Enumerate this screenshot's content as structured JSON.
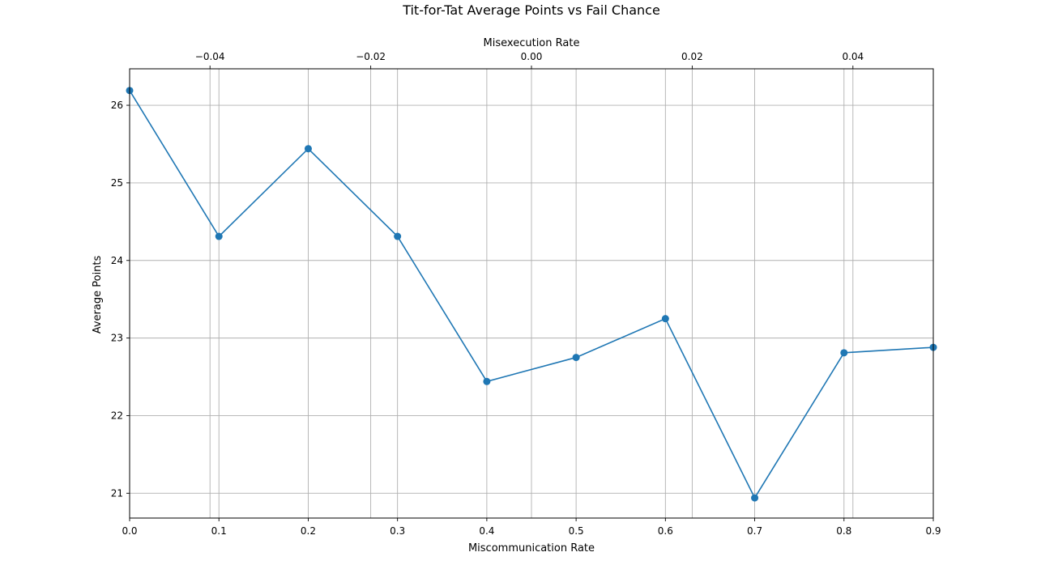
{
  "chart_data": {
    "type": "line",
    "title": "Tit-for-Tat Average Points vs Fail Chance",
    "xlabel": "Miscommunication Rate",
    "ylabel": "Average Points",
    "secondary_xlabel": "Misexecution Rate",
    "x": [
      0.0,
      0.1,
      0.2,
      0.3,
      0.4,
      0.5,
      0.6,
      0.7,
      0.8,
      0.9
    ],
    "series": [
      {
        "values": [
          26.19,
          24.31,
          25.44,
          24.31,
          22.44,
          22.75,
          23.25,
          20.94,
          22.81,
          22.88
        ]
      }
    ],
    "xlim": [
      0.0,
      0.9
    ],
    "ylim": [
      20.68,
      26.47
    ],
    "secondary_xlim": [
      -0.05,
      0.05
    ],
    "xticks": [
      "0.0",
      "0.1",
      "0.2",
      "0.3",
      "0.4",
      "0.5",
      "0.6",
      "0.7",
      "0.8",
      "0.9"
    ],
    "yticks": [
      "21",
      "22",
      "23",
      "24",
      "25",
      "26"
    ],
    "secondary_xticks": [
      "−0.04",
      "−0.02",
      "0.00",
      "0.02",
      "0.04"
    ],
    "grid": true,
    "line_color": "#1f77b4",
    "marker": "circle"
  }
}
